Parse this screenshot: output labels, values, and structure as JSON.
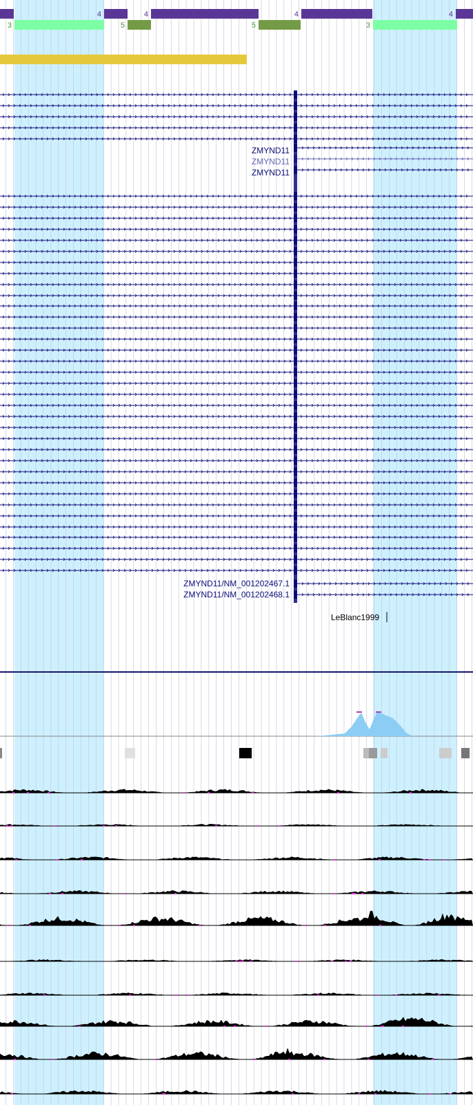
{
  "colors": {
    "highlight": "#cdf0ff",
    "gridline": "#c8c8dc",
    "gene_dark": "#0c0c78",
    "gene_light": "#6464b4",
    "purple_block": "#5a3796",
    "mint_block": "#7cffa4",
    "olive_block": "#739b46",
    "gold_bar": "#e6c83c",
    "divider": "#14146e",
    "phase_purple": "#5a3796",
    "phase_green": "#4b963c",
    "signal_black": "#000000",
    "signal_blue": "#8ccdf5",
    "signal_peak": "#aa46b4",
    "magenta_gap": "#e632e6"
  },
  "exon_phase_labels": {
    "top": [
      "4",
      "4",
      "4",
      "4"
    ],
    "bottom": [
      "3",
      "5",
      "5",
      "3"
    ]
  },
  "gene_labels": [
    {
      "text": "ZMYND11",
      "style": "dark"
    },
    {
      "text": "ZMYND11",
      "style": "light"
    },
    {
      "text": "ZMYND11",
      "style": "dark"
    },
    {
      "text": "ZMYND11/NM_001202467.1",
      "style": "dark"
    },
    {
      "text": "ZMYND11/NM_001202468.1",
      "style": "dark"
    }
  ],
  "publication_label": "LeBlanc1999",
  "tracks": {
    "transcript_rows": 45,
    "signal_tracks": 10
  }
}
